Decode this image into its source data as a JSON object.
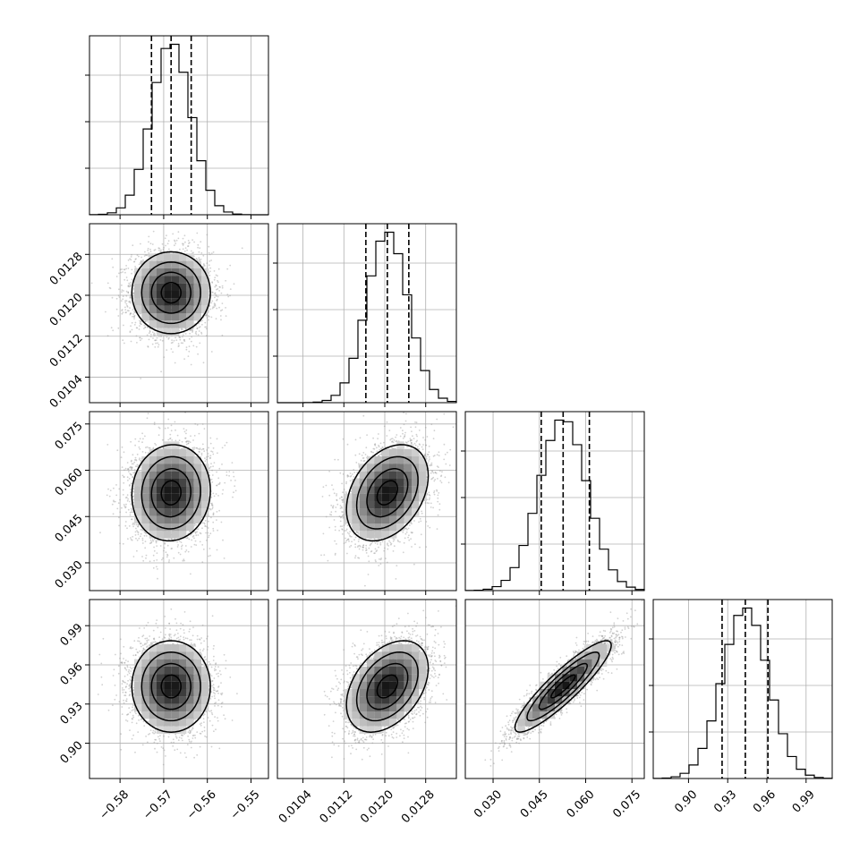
{
  "chart_data": {
    "type": "corner",
    "title": "",
    "grid": true,
    "colors": {
      "hist": "#000000",
      "scatter": "#9a9a9a",
      "grid": "#b0b0b0",
      "frame": "#000000"
    },
    "parameters": [
      {
        "name": "",
        "range": [
          -0.587,
          -0.546
        ],
        "ticks": [
          -0.58,
          -0.57,
          -0.56,
          -0.55
        ],
        "tick_labels": [
          "−0.58",
          "−0.57",
          "−0.56",
          "−0.55"
        ],
        "mean": -0.5683,
        "sigma": 0.0045,
        "quantiles": [
          -0.5728,
          -0.5683,
          -0.5637
        ]
      },
      {
        "name": "",
        "range": [
          0.0099,
          0.0134
        ],
        "ticks": [
          0.0104,
          0.0112,
          0.012,
          0.0128
        ],
        "tick_labels": [
          "0.0104",
          "0.0112",
          "0.0120",
          "0.0128"
        ],
        "mean": 0.01205,
        "sigma": 0.0004,
        "quantiles": [
          0.01163,
          0.01205,
          0.01247
        ]
      },
      {
        "name": "",
        "range": [
          0.021,
          0.079
        ],
        "ticks": [
          0.03,
          0.045,
          0.06,
          0.075
        ],
        "tick_labels": [
          "0.030",
          "0.045",
          "0.060",
          "0.075"
        ],
        "mean": 0.0527,
        "sigma": 0.0078,
        "quantiles": [
          0.0456,
          0.0527,
          0.0612
        ]
      },
      {
        "name": "",
        "range": [
          0.873,
          1.01
        ],
        "ticks": [
          0.9,
          0.93,
          0.96,
          0.99
        ],
        "tick_labels": [
          "0.90",
          "0.93",
          "0.96",
          "0.99"
        ],
        "mean": 0.9435,
        "sigma": 0.0175,
        "quantiles": [
          0.9257,
          0.9435,
          0.9608
        ]
      }
    ],
    "correlations": [
      [
        0,
        1,
        0.0
      ],
      [
        0,
        2,
        0.05
      ],
      [
        0,
        3,
        0.0
      ],
      [
        1,
        2,
        0.35
      ],
      [
        1,
        3,
        0.4
      ],
      [
        2,
        3,
        0.9
      ]
    ],
    "histogram_bins": 20,
    "scatter_points_per_panel": 3500,
    "contour_levels_sigma": [
      0.5,
      1.0,
      1.5,
      2.0
    ]
  }
}
